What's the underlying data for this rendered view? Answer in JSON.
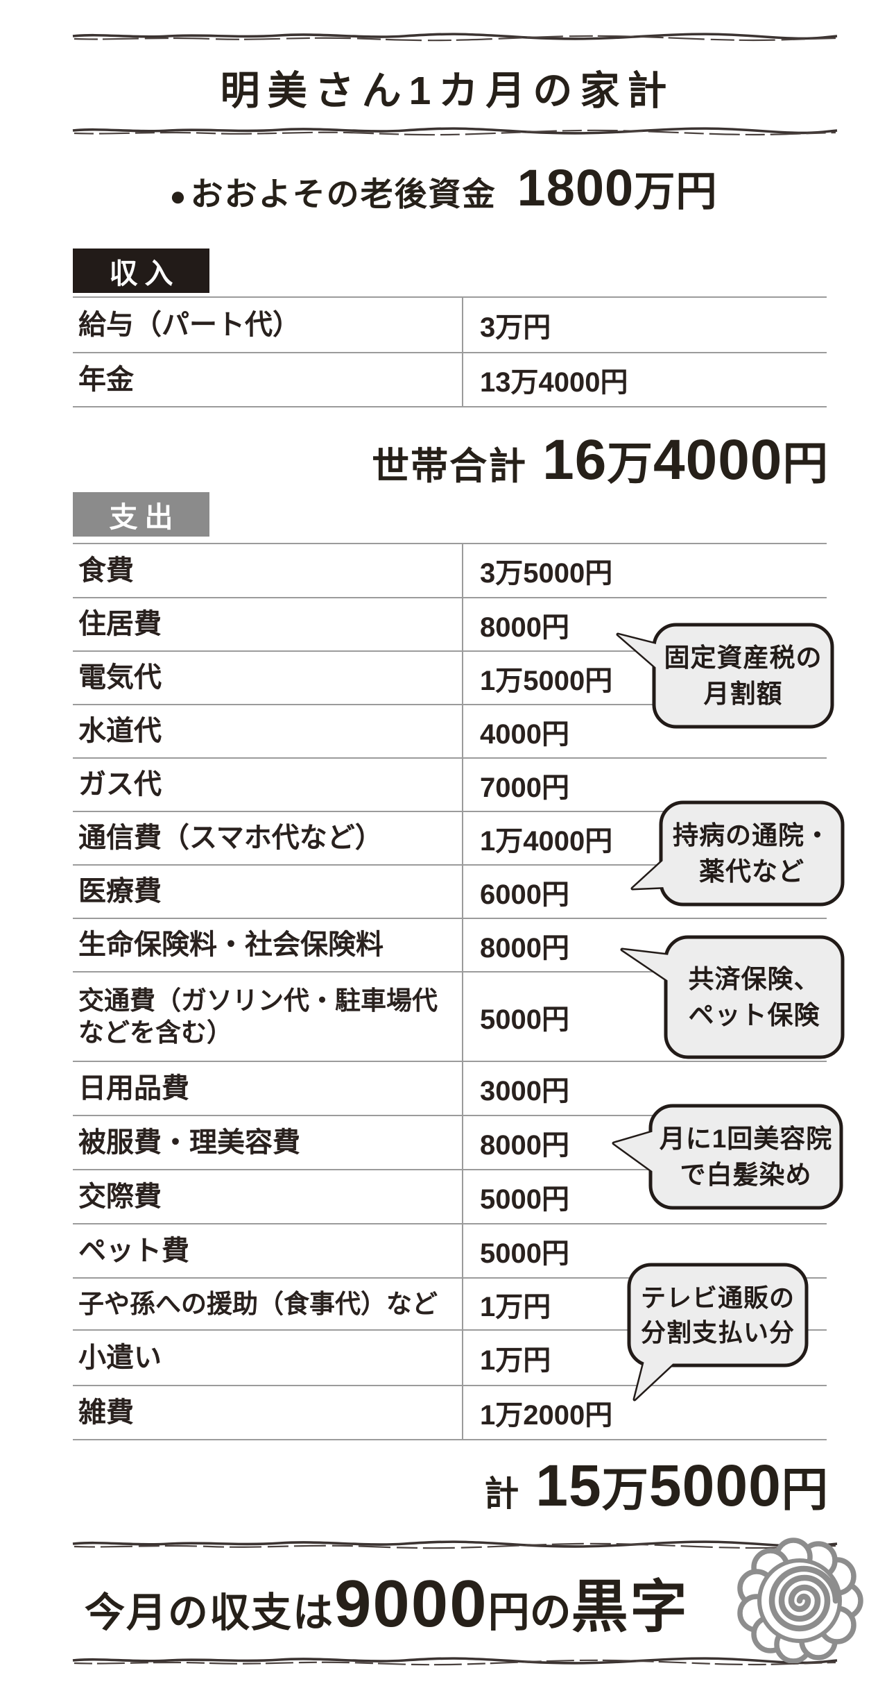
{
  "page": {
    "title": "明美さん1カ月の家計"
  },
  "retirement": {
    "bullet": "●",
    "label": "おおよその老後資金",
    "value": "1800万円"
  },
  "income": {
    "label": "収入",
    "rows": [
      {
        "item": "給与（パート代）",
        "amount": "3万円"
      },
      {
        "item": "年金",
        "amount": "13万4000円"
      }
    ],
    "total_label": "世帯合計",
    "total_value": "16万4000円"
  },
  "expenses": {
    "label": "支出",
    "rows": [
      {
        "item": "食費",
        "amount": "3万5000円"
      },
      {
        "item": "住居費",
        "amount": "8000円"
      },
      {
        "item": "電気代",
        "amount": "1万5000円"
      },
      {
        "item": "水道代",
        "amount": "4000円"
      },
      {
        "item": "ガス代",
        "amount": "7000円"
      },
      {
        "item": "通信費（スマホ代など）",
        "amount": "1万4000円"
      },
      {
        "item": "医療費",
        "amount": "6000円"
      },
      {
        "item": "生命保険料・社会保険料",
        "amount": "8000円"
      },
      {
        "item": "交通費（ガソリン代・駐車場代\nなどを含む）",
        "amount": "5000円"
      },
      {
        "item": "日用品費",
        "amount": "3000円"
      },
      {
        "item": "被服費・理美容費",
        "amount": "8000円"
      },
      {
        "item": "交際費",
        "amount": "5000円"
      },
      {
        "item": "ペット費",
        "amount": "5000円"
      },
      {
        "item": "子や孫への援助（食事代）など",
        "amount": "1万円"
      },
      {
        "item": "小遣い",
        "amount": "1万円"
      },
      {
        "item": "雑費",
        "amount": "1万2000円"
      }
    ],
    "total_label": "計",
    "total_value": "15万5000円"
  },
  "notes": [
    {
      "text": "固定資産税の\n月割額"
    },
    {
      "text": "持病の通院・\n薬代など"
    },
    {
      "text": "共済保険、\nペット保険"
    },
    {
      "text": "月に1回美容院\nで白髪染め"
    },
    {
      "text": "テレビ通販の\n分割支払い分"
    }
  ],
  "summary": {
    "prefix": "今月の収支は",
    "amount": "9000",
    "unit": "円の",
    "suffix": "黒字"
  },
  "icons": {
    "flower": "spiral-flower"
  },
  "colors": {
    "ink": "#262019",
    "income_tag_bg": "#221b18",
    "expense_tag_bg": "#8b8b8b",
    "table_line": "#9b9b9b",
    "bubble_fill": "#ededed",
    "bubble_border": "#221b18",
    "flower_gray": "#8d8d8d"
  }
}
